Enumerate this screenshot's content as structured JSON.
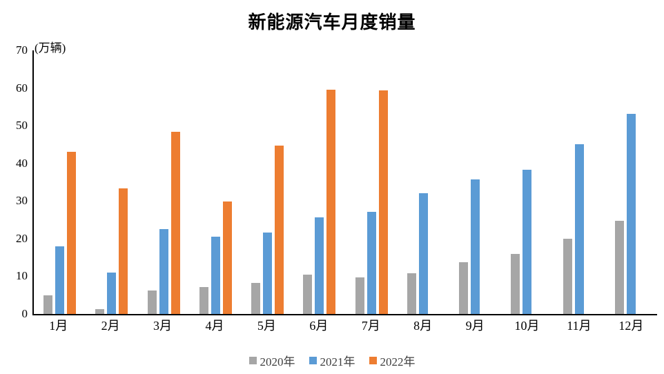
{
  "page": {
    "background": "#ffffff"
  },
  "chart_data": {
    "type": "bar",
    "title": "新能源汽车月度销量",
    "unit_label": "(万辆)",
    "categories": [
      "1月",
      "2月",
      "3月",
      "4月",
      "5月",
      "6月",
      "7月",
      "8月",
      "9月",
      "10月",
      "11月",
      "12月"
    ],
    "series": [
      {
        "name": "2020年",
        "color": "#A6A6A6",
        "values": [
          5.0,
          1.3,
          6.3,
          7.2,
          8.2,
          10.4,
          9.8,
          10.9,
          13.8,
          16.0,
          20.0,
          24.8
        ]
      },
      {
        "name": "2021年",
        "color": "#5B9BD5",
        "values": [
          17.9,
          11.0,
          22.6,
          20.6,
          21.7,
          25.6,
          27.1,
          32.1,
          35.7,
          38.3,
          45.0,
          53.1
        ]
      },
      {
        "name": "2022年",
        "color": "#ED7D31",
        "values": [
          43.1,
          33.4,
          48.4,
          29.9,
          44.7,
          59.6,
          59.3,
          null,
          null,
          null,
          null,
          null
        ]
      }
    ],
    "ylim": [
      0,
      70
    ],
    "yticks": [
      0,
      10,
      20,
      30,
      40,
      50,
      60,
      70
    ],
    "grid": false,
    "legend_position": "bottom",
    "axis_color": "#000000",
    "text_color": "#000000"
  }
}
